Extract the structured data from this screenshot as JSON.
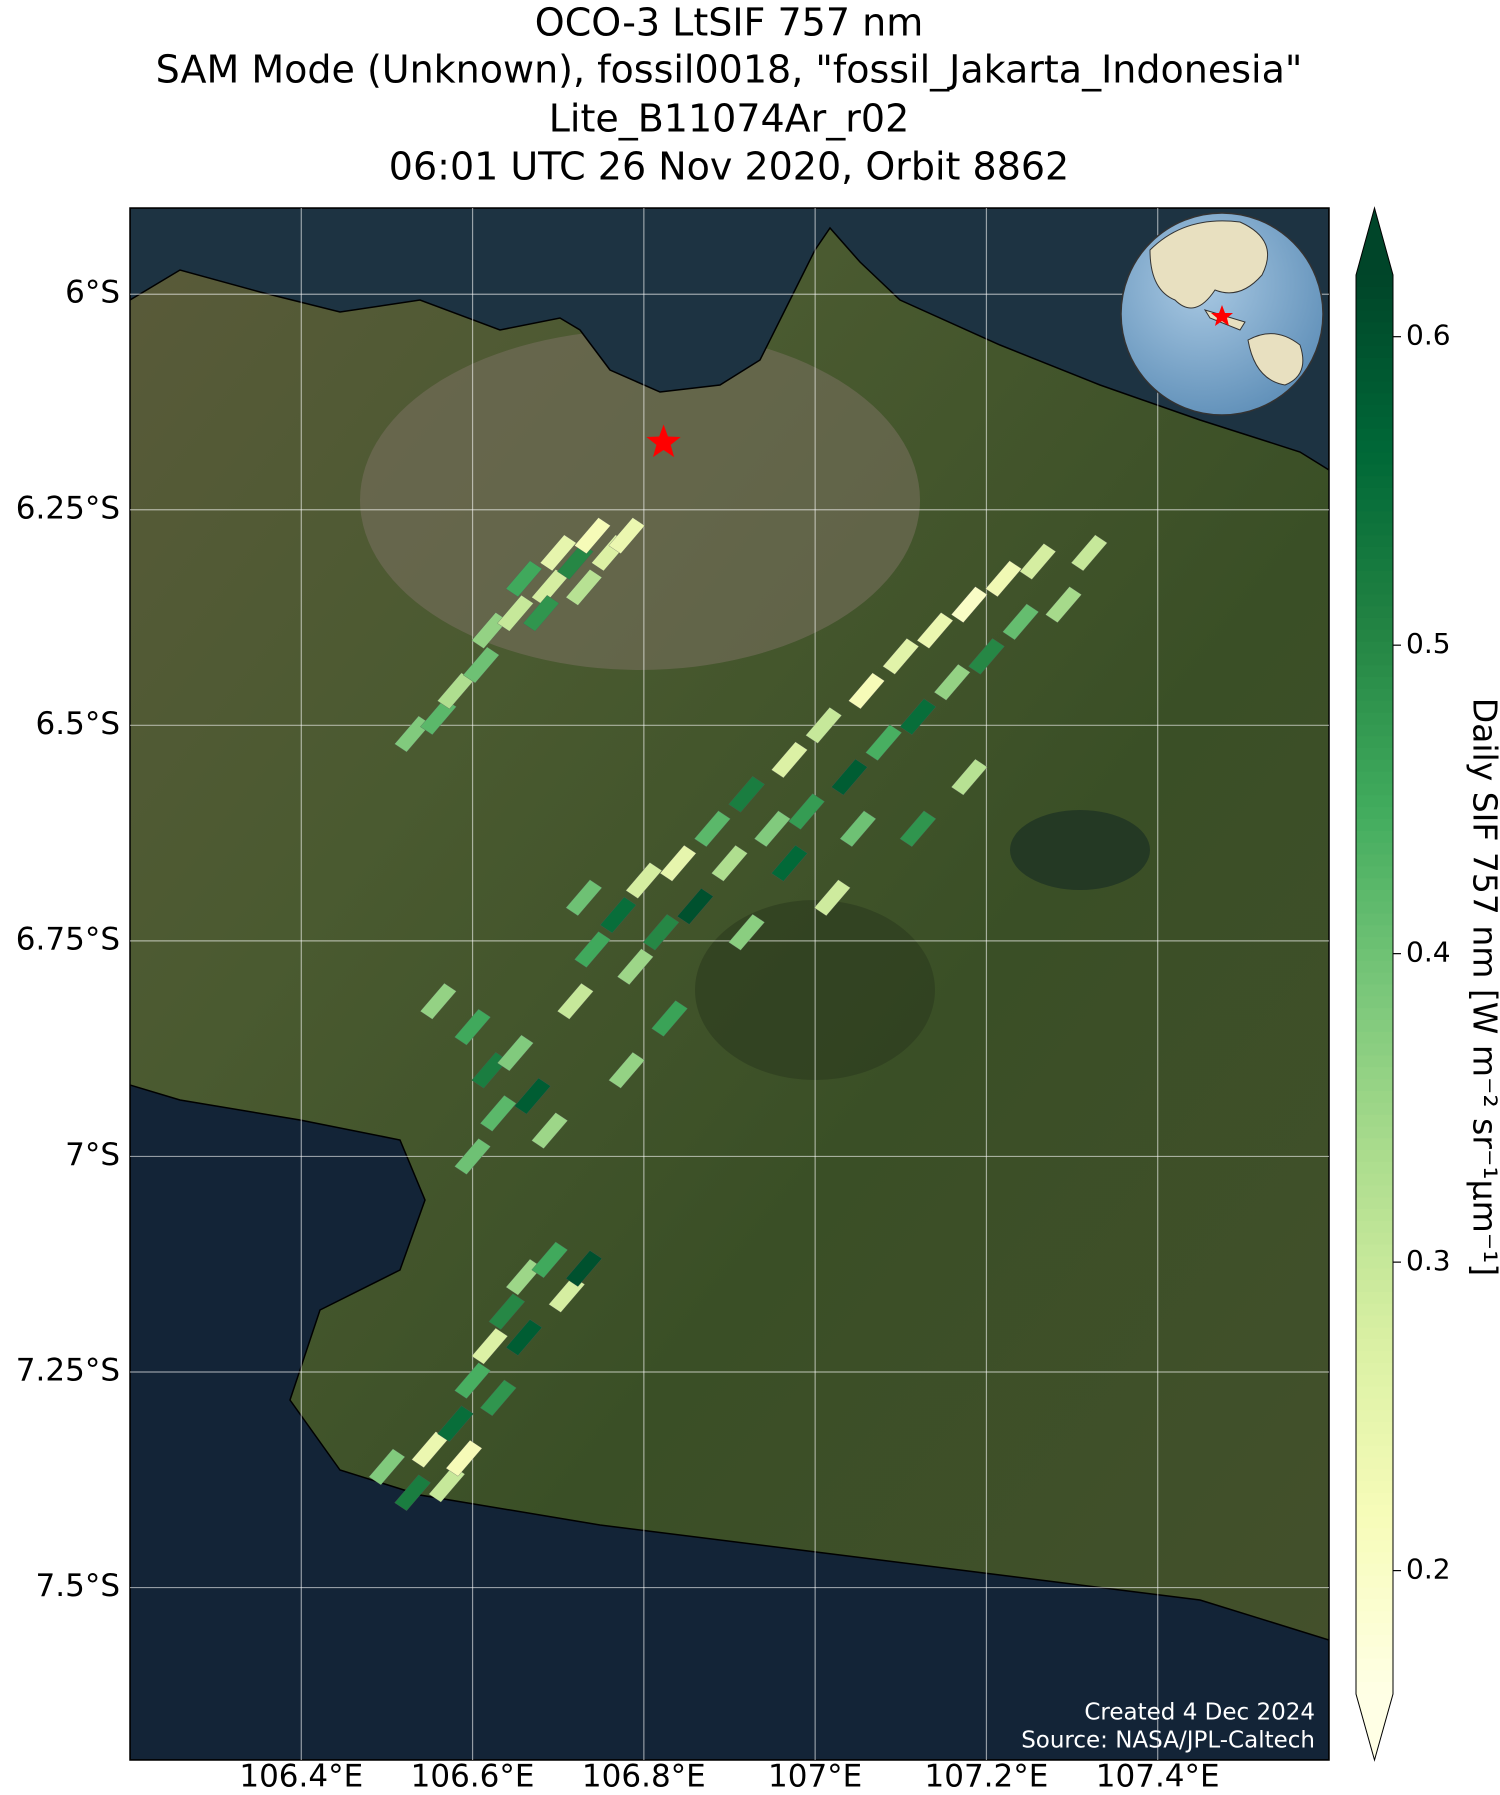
{
  "chart_data": {
    "type": "map",
    "title": [
      "OCO-3 LtSIF 757 nm",
      "SAM Mode (Unknown), fossil0018, \"fossil_Jakarta_Indonesia\"",
      "Lite_B11074Ar_r02",
      "06:01 UTC 26 Nov 2020, Orbit 8862"
    ],
    "xlim": [
      106.2,
      107.6
    ],
    "ylim": [
      -7.7,
      -5.9
    ],
    "xticks": [
      {
        "value": 106.4,
        "label": "106.4°E"
      },
      {
        "value": 106.6,
        "label": "106.6°E"
      },
      {
        "value": 106.8,
        "label": "106.8°E"
      },
      {
        "value": 107.0,
        "label": "107°E"
      },
      {
        "value": 107.2,
        "label": "107.2°E"
      },
      {
        "value": 107.4,
        "label": "107.4°E"
      }
    ],
    "yticks": [
      {
        "value": -6.0,
        "label": "6°S"
      },
      {
        "value": -6.25,
        "label": "6.25°S"
      },
      {
        "value": -6.5,
        "label": "6.5°S"
      },
      {
        "value": -6.75,
        "label": "6.75°S"
      },
      {
        "value": -7.0,
        "label": "7°S"
      },
      {
        "value": -7.25,
        "label": "7.25°S"
      },
      {
        "value": -7.5,
        "label": "7.5°S"
      }
    ],
    "grid": true,
    "colormap": "YlGn",
    "clim": [
      0.16,
      0.62
    ],
    "cticks": [
      0.2,
      0.3,
      0.4,
      0.5,
      0.6
    ],
    "colorbar_label": "Daily SIF 757 nm [W m⁻² sr⁻¹μm⁻¹]",
    "target": {
      "lon": 106.823,
      "lat": -6.172,
      "color": "#ff0000"
    },
    "soundings": {
      "lon": [
        106.53,
        106.56,
        106.58,
        106.61,
        106.62,
        106.65,
        106.66,
        106.69,
        106.7,
        106.72,
        106.74,
        106.76,
        106.78,
        106.68,
        106.73,
        106.72,
        106.74,
        106.73,
        106.77,
        106.79,
        106.8,
        106.82,
        106.84,
        106.86,
        106.88,
        106.9,
        106.92,
        106.95,
        106.97,
        106.99,
        107.01,
        107.04,
        107.06,
        107.08,
        107.1,
        107.12,
        107.14,
        107.16,
        107.18,
        107.2,
        107.22,
        107.24,
        107.26,
        107.29,
        107.32,
        107.12,
        107.18,
        106.92,
        106.97,
        107.02,
        106.83,
        106.78,
        107.05,
        106.6,
        106.62,
        106.65,
        106.63,
        106.67,
        106.6,
        106.69,
        106.56,
        106.5,
        106.53,
        106.55,
        106.58,
        106.57,
        106.6,
        106.62,
        106.64,
        106.66,
        106.66,
        106.69,
        106.71,
        106.73,
        106.63,
        106.59
      ],
      "lat": [
        -6.51,
        -6.49,
        -6.46,
        -6.43,
        -6.39,
        -6.37,
        -6.33,
        -6.34,
        -6.3,
        -6.31,
        -6.28,
        -6.3,
        -6.28,
        -6.37,
        -6.34,
        -6.82,
        -6.76,
        -6.7,
        -6.72,
        -6.78,
        -6.68,
        -6.74,
        -6.66,
        -6.71,
        -6.62,
        -6.66,
        -6.58,
        -6.62,
        -6.54,
        -6.6,
        -6.5,
        -6.56,
        -6.46,
        -6.52,
        -6.42,
        -6.49,
        -6.39,
        -6.45,
        -6.36,
        -6.42,
        -6.33,
        -6.38,
        -6.31,
        -6.36,
        -6.3,
        -6.62,
        -6.56,
        -6.74,
        -6.66,
        -6.7,
        -6.84,
        -6.9,
        -6.62,
        -6.85,
        -6.9,
        -6.88,
        -6.95,
        -6.93,
        -7.0,
        -6.97,
        -6.82,
        -7.36,
        -7.39,
        -7.34,
        -7.31,
        -7.38,
        -7.26,
        -7.22,
        -7.18,
        -7.21,
        -7.14,
        -7.12,
        -7.16,
        -7.13,
        -7.28,
        -7.35
      ],
      "sif": [
        0.38,
        0.42,
        0.33,
        0.4,
        0.36,
        0.3,
        0.45,
        0.28,
        0.25,
        0.5,
        0.22,
        0.27,
        0.24,
        0.48,
        0.32,
        0.3,
        0.45,
        0.4,
        0.55,
        0.35,
        0.28,
        0.5,
        0.25,
        0.6,
        0.42,
        0.33,
        0.52,
        0.38,
        0.27,
        0.47,
        0.3,
        0.58,
        0.22,
        0.44,
        0.26,
        0.55,
        0.24,
        0.36,
        0.2,
        0.5,
        0.23,
        0.41,
        0.28,
        0.34,
        0.3,
        0.48,
        0.32,
        0.37,
        0.56,
        0.29,
        0.46,
        0.36,
        0.4,
        0.45,
        0.52,
        0.38,
        0.42,
        0.58,
        0.4,
        0.35,
        0.36,
        0.38,
        0.52,
        0.24,
        0.55,
        0.3,
        0.44,
        0.27,
        0.5,
        0.58,
        0.35,
        0.45,
        0.28,
        0.6,
        0.48,
        0.22
      ]
    },
    "credits": [
      "Created 4 Dec 2024",
      "Source: NASA/JPL-Caltech"
    ]
  }
}
